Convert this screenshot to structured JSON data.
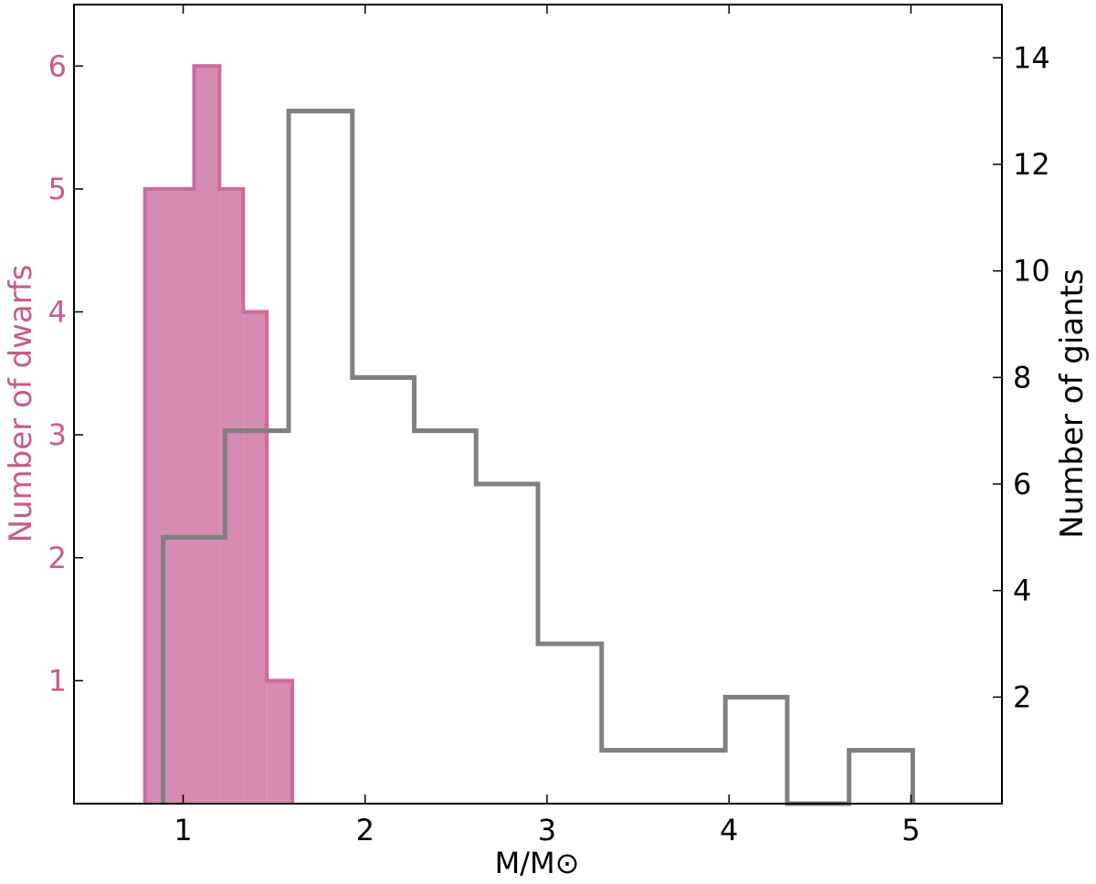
{
  "chart_data": {
    "type": "histogram",
    "xlabel": "M/M⊙",
    "xlim": [
      0.4,
      5.5
    ],
    "x_ticks": [
      1,
      2,
      3,
      4,
      5
    ],
    "y_left": {
      "label": "Number of dwarfs",
      "color": "#c9598e",
      "ylim": [
        0,
        6.5
      ],
      "ticks": [
        1,
        2,
        3,
        4,
        5,
        6
      ]
    },
    "y_right": {
      "label": "Number of giants",
      "color": "#000000",
      "ylim": [
        0,
        15
      ],
      "ticks": [
        2,
        4,
        6,
        8,
        10,
        12,
        14
      ]
    },
    "series": [
      {
        "name": "dwarfs",
        "axis": "left",
        "style": "filled",
        "color": "#d68bb0",
        "edge_color": "#cc6a9c",
        "bin_edges": [
          0.79,
          1.06,
          1.2,
          1.33,
          1.46,
          1.6
        ],
        "counts": [
          5,
          6,
          5,
          4,
          1
        ]
      },
      {
        "name": "giants",
        "axis": "right",
        "style": "step",
        "color": "#808080",
        "bin_edges": [
          0.89,
          1.23,
          1.58,
          1.93,
          2.27,
          2.61,
          2.95,
          3.3,
          3.64,
          3.98,
          4.32,
          4.66,
          5.01
        ],
        "counts": [
          5,
          7,
          13,
          8,
          7,
          6,
          3,
          1,
          1,
          2,
          0,
          1
        ]
      }
    ]
  }
}
